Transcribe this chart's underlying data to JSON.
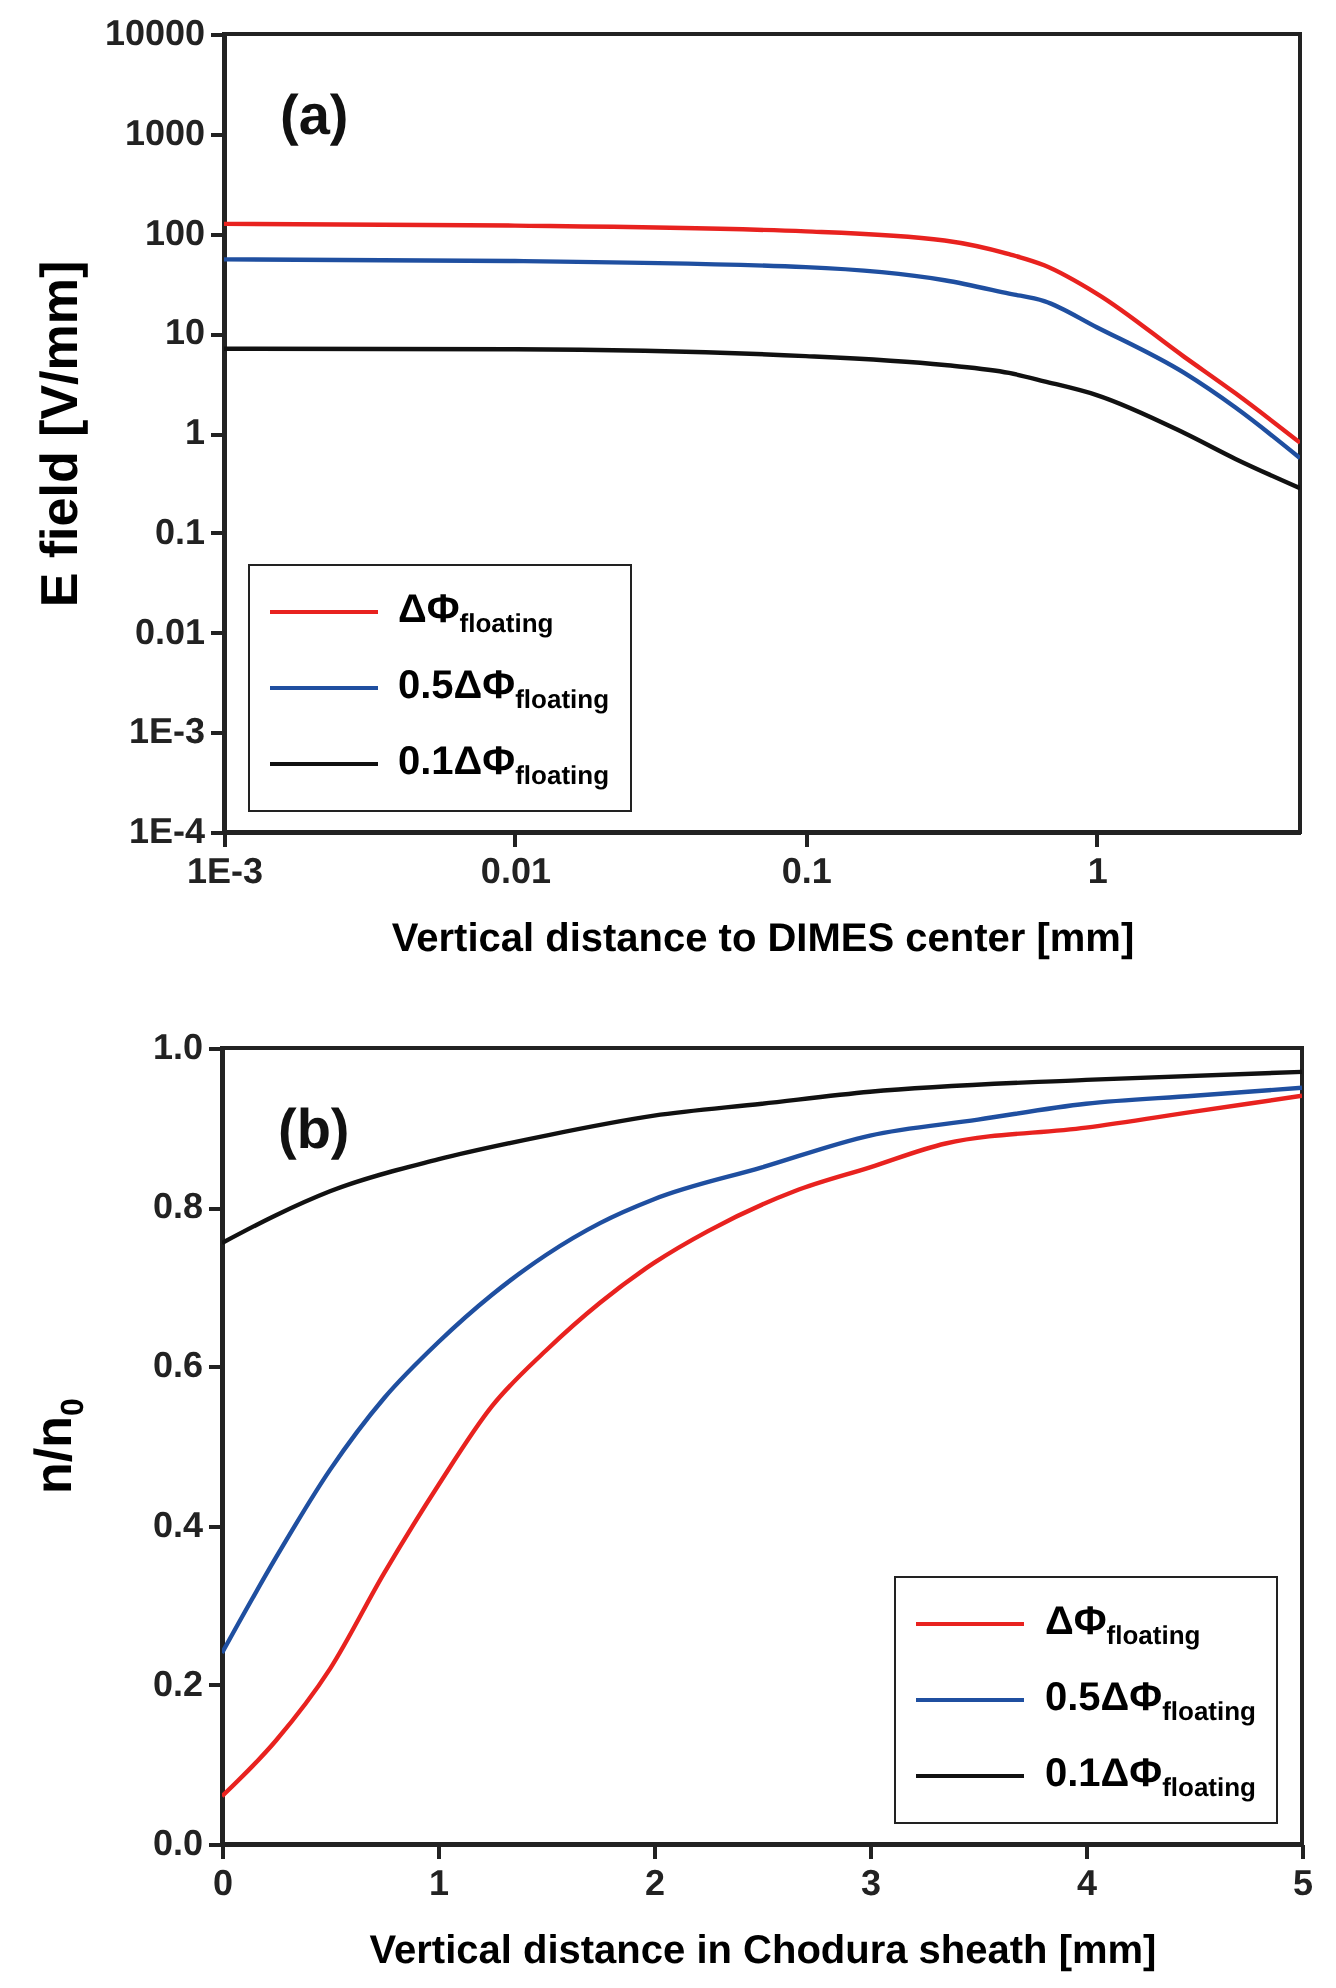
{
  "chart_data": [
    {
      "type": "line",
      "annotations": [
        "(a)"
      ],
      "xlabel": "Vertical distance to DIMES center [mm]",
      "ylabel": "E field [V/mm]",
      "log": "xy",
      "legend": "bottom left",
      "xlim": [
        0.001,
        5
      ],
      "xticks": [
        {
          "value": 0.001,
          "label": "1E-3"
        },
        0.01,
        0.1,
        1
      ],
      "ylim": [
        0.0001,
        10000
      ],
      "yticks": [
        {
          "value": 0.0001,
          "label": "1E-4"
        },
        {
          "value": 0.001,
          "label": "1E-3"
        },
        0.01,
        0.1,
        1,
        10,
        100,
        1000,
        10000
      ],
      "x": [
        0.001,
        0.01,
        0.1,
        0.3,
        0.5,
        0.66,
        1,
        2,
        3,
        5
      ],
      "series": [
        {
          "name": "ΔΦ$_{floating}$",
          "color": "#e8221f",
          "values": [
            125,
            120,
            105,
            85,
            62,
            48,
            25,
            5.8,
            2.5,
            0.8
          ]
        },
        {
          "name": "0.5ΔΦ$_{floating}$",
          "color": "#1f4fa0",
          "values": [
            55,
            53,
            46,
            34,
            25,
            21,
            11.5,
            4,
            1.8,
            0.56
          ]
        },
        {
          "name": "0.1ΔΦ$_{floating}$",
          "color": "#111111",
          "values": [
            7,
            6.9,
            5.9,
            4.8,
            4,
            3.3,
            2.4,
            1,
            0.55,
            0.28
          ]
        }
      ]
    },
    {
      "type": "line",
      "annotations": [
        "(b)"
      ],
      "xlabel": "Vertical distance in Chodura sheath [mm]",
      "ylabel": "n/n$_{0}$",
      "legend": "bottom right",
      "xlim": [
        0,
        5
      ],
      "xticks": [
        0,
        1,
        2,
        3,
        4,
        5
      ],
      "ylim": [
        0,
        1
      ],
      "yticks": [
        {
          "value": 0,
          "label": "0.0"
        },
        0.2,
        0.4,
        0.6,
        0.8,
        {
          "value": 1,
          "label": "1.0"
        }
      ],
      "series": [
        {
          "name": "ΔΦ$_{floating}$",
          "color": "#e8221f",
          "x": [
            0,
            0.25,
            0.5,
            0.75,
            1,
            1.25,
            1.5,
            1.75,
            2,
            2.25,
            2.65,
            3,
            3.35,
            4,
            4.5,
            5
          ],
          "values": [
            0.06,
            0.13,
            0.22,
            0.34,
            0.45,
            0.55,
            0.62,
            0.68,
            0.73,
            0.77,
            0.82,
            0.85,
            0.88,
            0.9,
            0.92,
            0.94
          ]
        },
        {
          "name": "0.5ΔΦ$_{floating}$",
          "color": "#1f4fa0",
          "x": [
            0,
            0.25,
            0.5,
            0.75,
            1,
            1.25,
            1.5,
            1.75,
            2,
            2.5,
            3,
            3.5,
            4,
            4.5,
            5
          ],
          "values": [
            0.24,
            0.36,
            0.47,
            0.56,
            0.63,
            0.69,
            0.74,
            0.78,
            0.81,
            0.85,
            0.89,
            0.91,
            0.93,
            0.94,
            0.95
          ]
        },
        {
          "name": "0.1ΔΦ$_{floating}$",
          "color": "#111111",
          "x": [
            0,
            0.25,
            0.5,
            1,
            1.5,
            2,
            2.5,
            3,
            4,
            5
          ],
          "values": [
            0.755,
            0.79,
            0.82,
            0.86,
            0.89,
            0.915,
            0.93,
            0.945,
            0.96,
            0.97
          ]
        }
      ]
    }
  ]
}
